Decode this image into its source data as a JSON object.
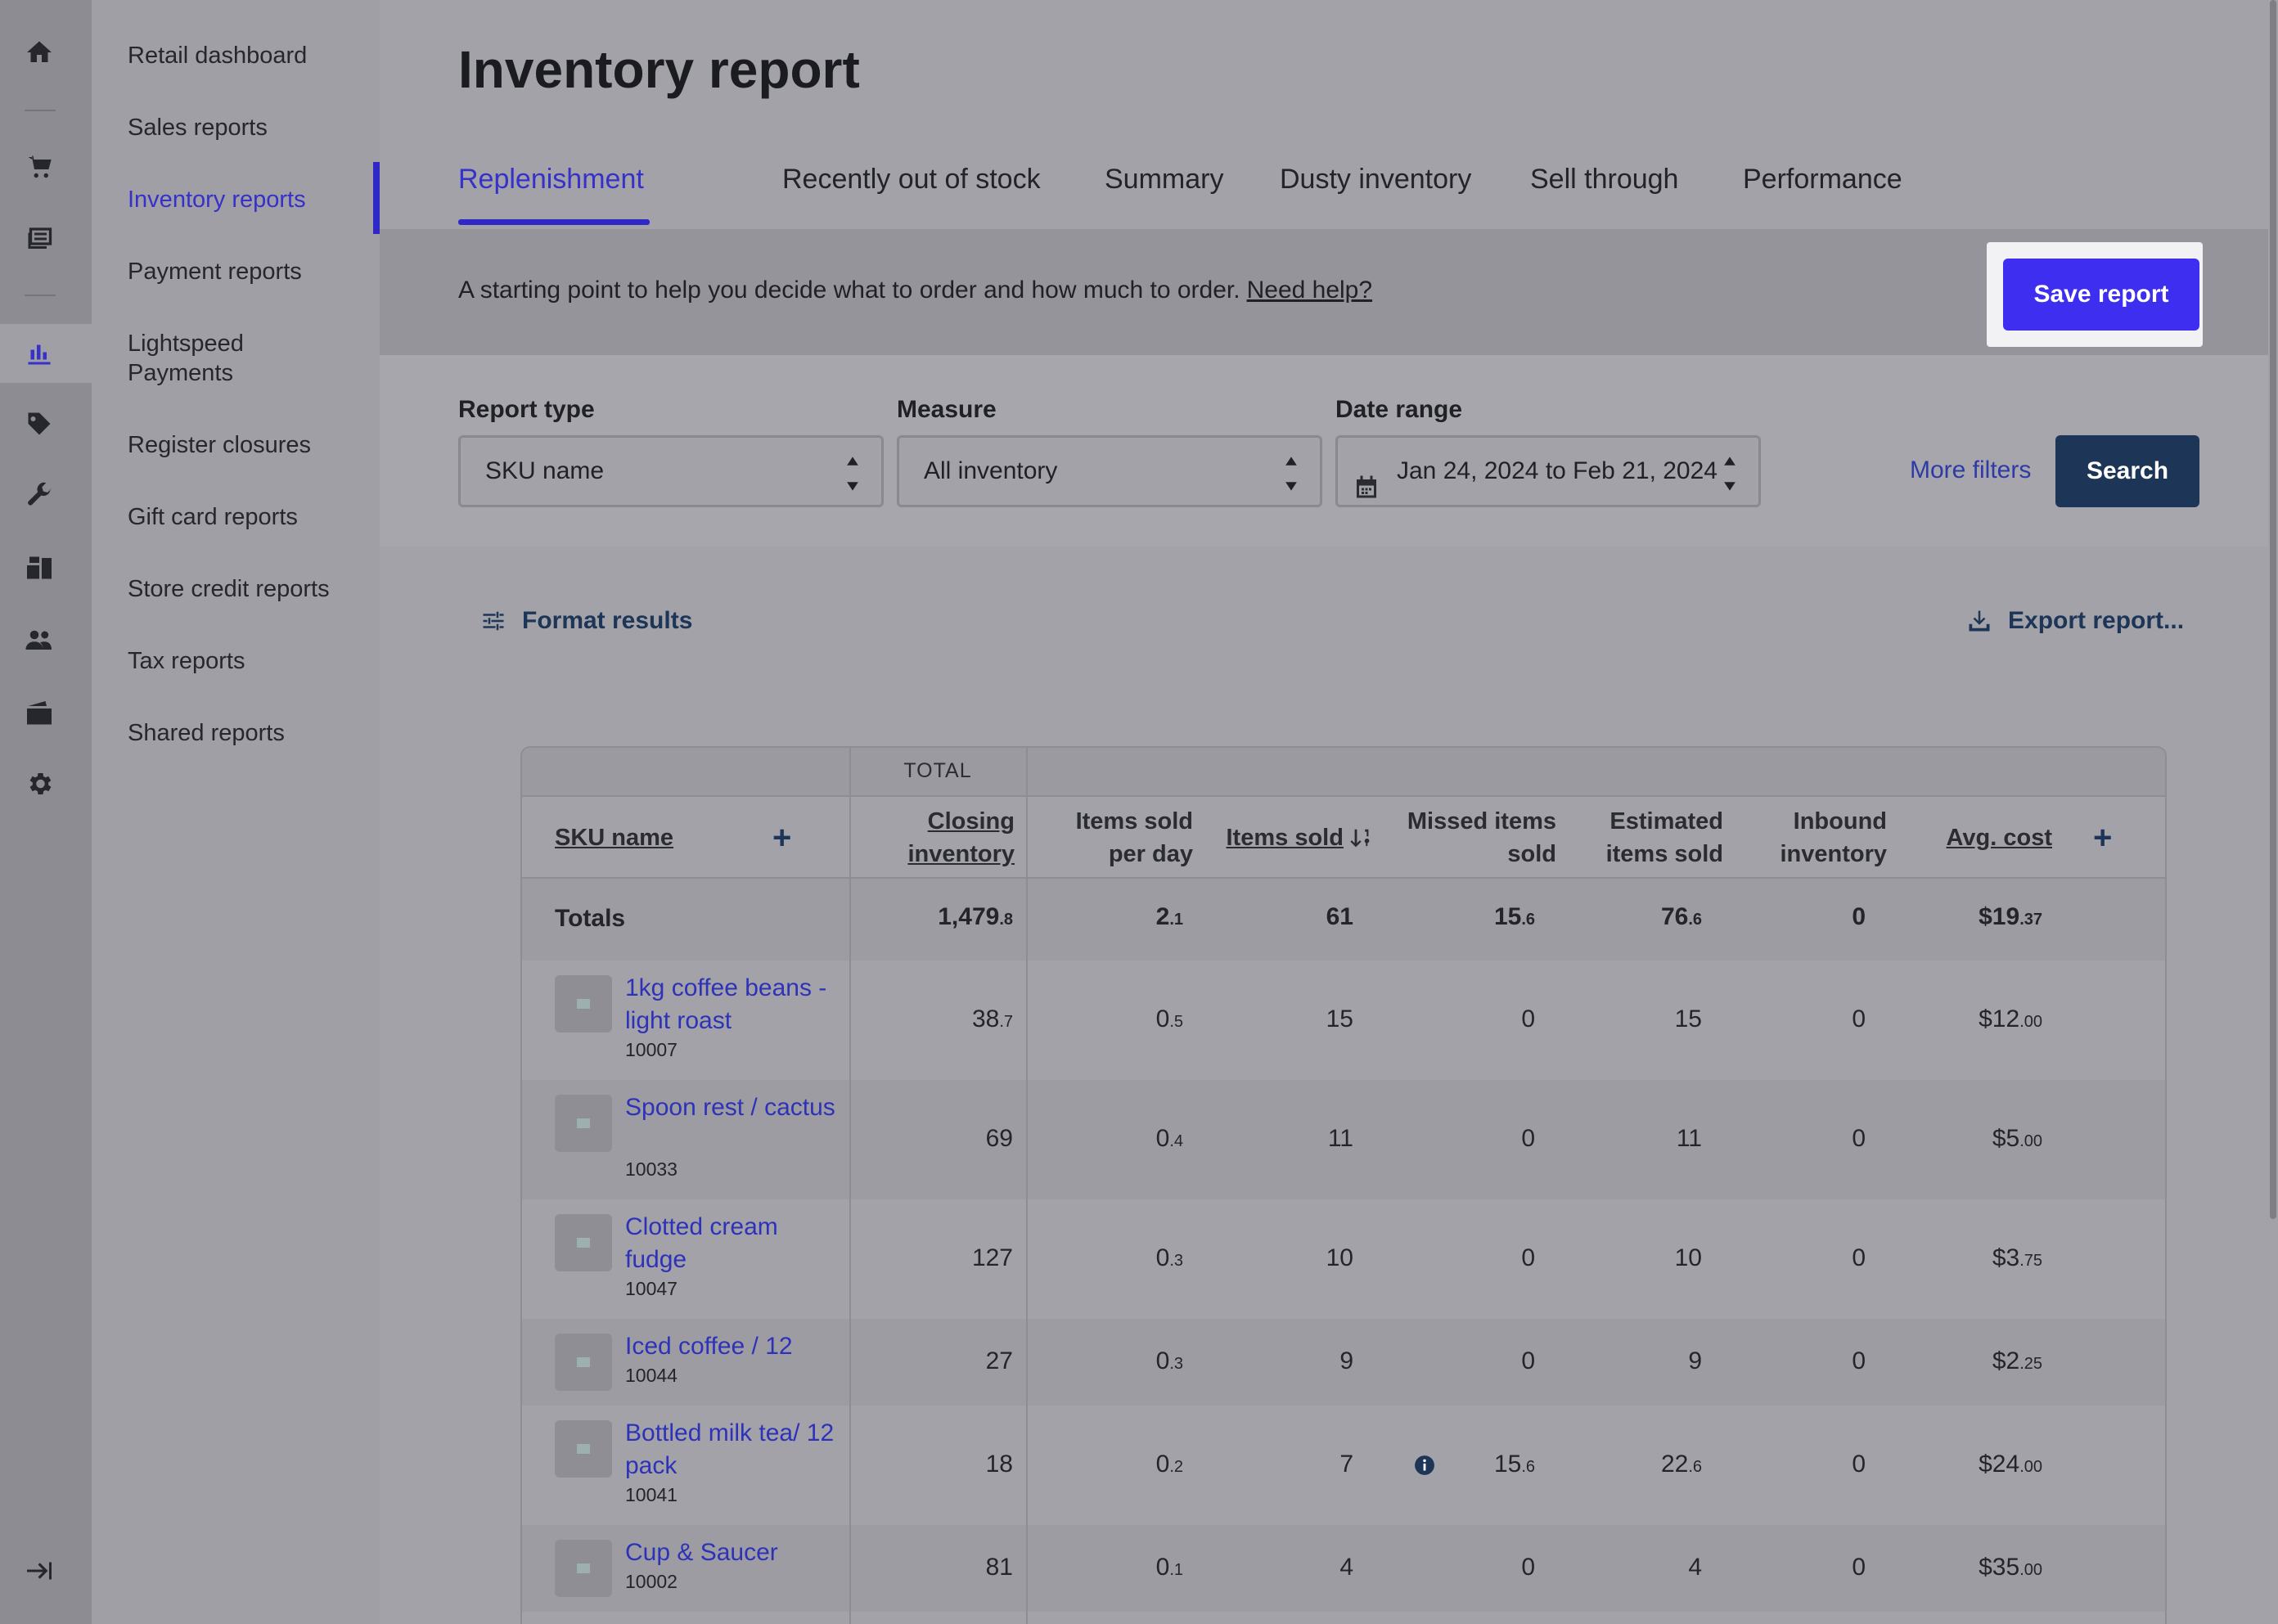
{
  "rail": {
    "icons": [
      "home-icon",
      "cart-icon",
      "register-icon",
      "reports-icon",
      "tag-icon",
      "wrench-icon",
      "boxes-icon",
      "customers-icon",
      "wallet-icon",
      "gear-icon",
      "collapse-icon"
    ]
  },
  "nav": {
    "items": [
      {
        "label": "Retail dashboard"
      },
      {
        "label": "Sales reports"
      },
      {
        "label": "Inventory reports",
        "active": true
      },
      {
        "label": "Payment reports"
      },
      {
        "label": "Lightspeed Payments"
      },
      {
        "label": "Register closures"
      },
      {
        "label": "Gift card reports"
      },
      {
        "label": "Store credit reports"
      },
      {
        "label": "Tax reports"
      },
      {
        "label": "Shared reports"
      }
    ]
  },
  "page": {
    "title": "Inventory report"
  },
  "tabs": [
    "Replenishment",
    "Recently out of stock",
    "Summary",
    "Dusty inventory",
    "Sell through",
    "Performance"
  ],
  "banner": {
    "text": "A starting point to help you decide what to order and how much to order.",
    "help_link": "Need help?",
    "save_label": "Save report"
  },
  "filters": {
    "report_type_label": "Report type",
    "report_type_value": "SKU name",
    "measure_label": "Measure",
    "measure_value": "All inventory",
    "date_label": "Date range",
    "date_value": "Jan 24, 2024 to Feb 21, 2024",
    "more_filters": "More filters",
    "search_label": "Search"
  },
  "toolbar": {
    "format_results": "Format results",
    "export_report": "Export report..."
  },
  "table": {
    "group_label": "TOTAL",
    "headers": {
      "sku_name": "SKU name",
      "closing_inventory_1": "Closing",
      "closing_inventory_2": "inventory",
      "items_per_day_1": "Items sold",
      "items_per_day_2": "per day",
      "items_sold": "Items sold",
      "missed_1": "Missed items",
      "missed_2": "sold",
      "estimated_1": "Estimated",
      "estimated_2": "items sold",
      "inbound_1": "Inbound",
      "inbound_2": "inventory",
      "avg_cost": "Avg. cost"
    },
    "totals": {
      "label": "Totals",
      "closing_main": "1,479",
      "closing_dec": ".8",
      "per_day_main": "2",
      "per_day_dec": ".1",
      "items_sold": "61",
      "missed_main": "15",
      "missed_dec": ".6",
      "estimated_main": "76",
      "estimated_dec": ".6",
      "inbound": "0",
      "cost_main": "$19",
      "cost_dec": ".37"
    },
    "rows": [
      {
        "name": "1kg coffee beans - light roast",
        "sku": "10007",
        "closing_main": "38",
        "closing_dec": ".7",
        "per_day_main": "0",
        "per_day_dec": ".5",
        "items_sold": "15",
        "missed_main": "0",
        "missed_dec": "",
        "estimated_main": "15",
        "estimated_dec": "",
        "inbound": "0",
        "cost_main": "$12",
        "cost_dec": ".00"
      },
      {
        "name": "Spoon rest / cactus",
        "sku": "10033",
        "closing_main": "69",
        "closing_dec": "",
        "per_day_main": "0",
        "per_day_dec": ".4",
        "items_sold": "11",
        "missed_main": "0",
        "missed_dec": "",
        "estimated_main": "11",
        "estimated_dec": "",
        "inbound": "0",
        "cost_main": "$5",
        "cost_dec": ".00"
      },
      {
        "name": "Clotted cream fudge",
        "sku": "10047",
        "closing_main": "127",
        "closing_dec": "",
        "per_day_main": "0",
        "per_day_dec": ".3",
        "items_sold": "10",
        "missed_main": "0",
        "missed_dec": "",
        "estimated_main": "10",
        "estimated_dec": "",
        "inbound": "0",
        "cost_main": "$3",
        "cost_dec": ".75"
      },
      {
        "name": "Iced coffee / 12",
        "sku": "10044",
        "closing_main": "27",
        "closing_dec": "",
        "per_day_main": "0",
        "per_day_dec": ".3",
        "items_sold": "9",
        "missed_main": "0",
        "missed_dec": "",
        "estimated_main": "9",
        "estimated_dec": "",
        "inbound": "0",
        "cost_main": "$2",
        "cost_dec": ".25"
      },
      {
        "name": "Bottled milk tea/ 12 pack",
        "sku": "10041",
        "closing_main": "18",
        "closing_dec": "",
        "per_day_main": "0",
        "per_day_dec": ".2",
        "items_sold": "7",
        "missed_main": "15",
        "missed_dec": ".6",
        "estimated_main": "22",
        "estimated_dec": ".6",
        "inbound": "0",
        "cost_main": "$24",
        "cost_dec": ".00"
      },
      {
        "name": "Cup & Saucer",
        "sku": "10002",
        "closing_main": "81",
        "closing_dec": "",
        "per_day_main": "0",
        "per_day_dec": ".1",
        "items_sold": "4",
        "missed_main": "0",
        "missed_dec": "",
        "estimated_main": "4",
        "estimated_dec": "",
        "inbound": "0",
        "cost_main": "$35",
        "cost_dec": ".00"
      }
    ]
  }
}
